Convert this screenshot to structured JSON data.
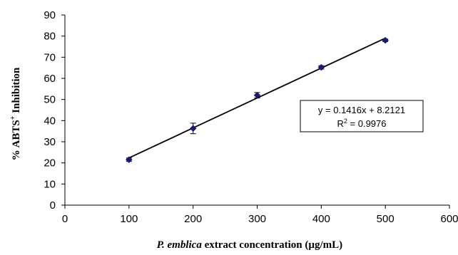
{
  "chart_data": {
    "type": "scatter",
    "xlabel": {
      "italic_part": "P. emblica",
      "rest": " extract concentration (µg/mL)"
    },
    "ylabel": {
      "prefix": "% ABTS",
      "superscript": "+",
      "suffix": " Inhibition"
    },
    "xlim": [
      0,
      600
    ],
    "ylim": [
      0,
      90
    ],
    "x_ticks": [
      0,
      100,
      200,
      300,
      400,
      500,
      600
    ],
    "y_ticks": [
      0,
      10,
      20,
      30,
      40,
      50,
      60,
      70,
      80,
      90
    ],
    "grid": false,
    "legend": null,
    "series": [
      {
        "x": [
          100,
          200,
          300,
          400,
          500
        ],
        "y": [
          21.5,
          36.3,
          52.0,
          65.2,
          78.0
        ],
        "error": [
          0.8,
          2.5,
          1.3,
          0.8,
          0.6
        ],
        "marker": "diamond",
        "color": "#1a1a6e"
      }
    ],
    "trendline": {
      "slope": 0.1416,
      "intercept": 8.2121,
      "x_range": [
        100,
        500
      ],
      "color": "#000000"
    },
    "annotation": {
      "equation": "y = 0.1416x + 8.2121",
      "r2_prefix": "R",
      "r2_superscript": "2",
      "r2_suffix": " = 0.9976"
    }
  }
}
